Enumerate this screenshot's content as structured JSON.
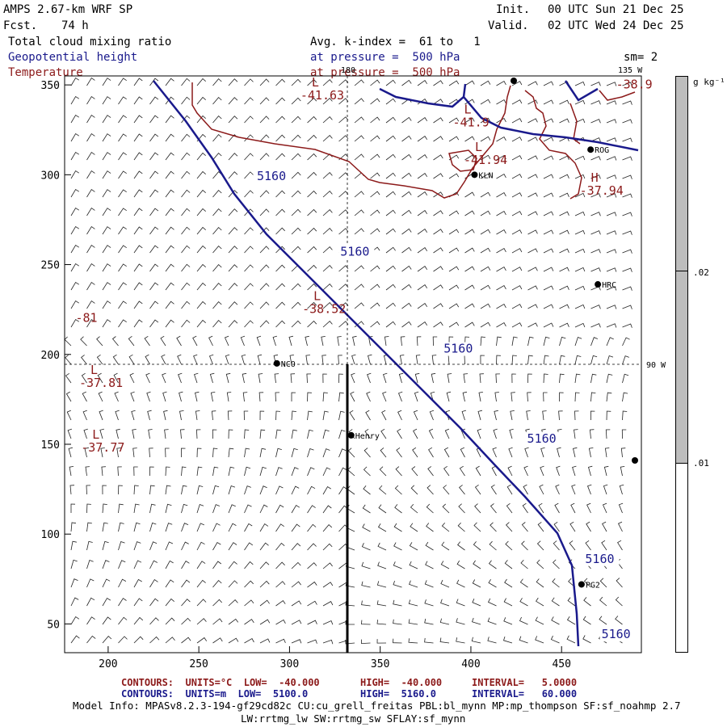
{
  "header": {
    "model_title": "AMPS 2.67-km WRF SP",
    "fcst_label": "Fcst.",
    "fcst_value": "74 h",
    "init_label": "Init.",
    "init_value": "00 UTC Sun 21 Dec 25",
    "valid_label": "Valid.",
    "valid_value": "02 UTC Wed 24 Dec 25",
    "field1": "Total cloud mixing ratio",
    "field2": "Geopotential height",
    "field3": "Temperature",
    "avg_text": "Avg. k-index =  61 to   1",
    "pressure1": "at pressure =  500 hPa",
    "pressure2": "at pressure =  500 hPa",
    "smooth": "sm= 2"
  },
  "colors": {
    "height_contour": "#1a1a8c",
    "temp_contour": "#8c1a1a",
    "coast": "#1a1a8c",
    "colorbar_fill": "#bdbdbd"
  },
  "chart_data": {
    "type": "heatmap",
    "x_ticks": [
      200,
      250,
      300,
      350,
      400,
      450
    ],
    "y_ticks": [
      50,
      100,
      150,
      200,
      250,
      300,
      350
    ],
    "xlim": [
      176,
      494
    ],
    "ylim": [
      34,
      355
    ],
    "grid": false,
    "meridian_labels": [
      "180",
      "135 W",
      "90 W"
    ],
    "stations": [
      {
        "name": "NCO",
        "x": 293,
        "y": 195
      },
      {
        "name": "Henry",
        "x": 334,
        "y": 155
      },
      {
        "name": "KLN",
        "x": 402,
        "y": 300
      },
      {
        "name": "ROG",
        "x": 466,
        "y": 314
      },
      {
        "name": "HRC",
        "x": 470,
        "y": 239
      },
      {
        "name": "PG2",
        "x": 461,
        "y": 72
      }
    ],
    "height_contour_labels": [
      {
        "text": "5160",
        "x": 282,
        "y": 297
      },
      {
        "text": "5160",
        "x": 328,
        "y": 255
      },
      {
        "text": "5160",
        "x": 385,
        "y": 201
      },
      {
        "text": "5160",
        "x": 431,
        "y": 151
      },
      {
        "text": "5160",
        "x": 463,
        "y": 84
      },
      {
        "text": "5160",
        "x": 472,
        "y": 42
      }
    ],
    "temp_extrema": [
      {
        "label": "L",
        "value": "-41.63",
        "x": 306,
        "y": 342
      },
      {
        "label": "L",
        "value": "-41.9",
        "x": 390,
        "y": 327
      },
      {
        "label": "L",
        "value": "-41.94",
        "x": 396,
        "y": 306
      },
      {
        "label": "H",
        "value": "-37.94",
        "x": 460,
        "y": 289
      },
      {
        "label": "",
        "value": "-38.9",
        "x": 480,
        "y": 348
      },
      {
        "label": "L",
        "value": "-38.52",
        "x": 307,
        "y": 223
      },
      {
        "label": "",
        "value": "-81",
        "x": 182,
        "y": 218
      },
      {
        "label": "L",
        "value": "-37.81",
        "x": 184,
        "y": 182
      },
      {
        "label": "L",
        "value": "-37.77",
        "x": 185,
        "y": 146
      }
    ],
    "colorbar": {
      "units": "g kg⁻¹",
      "ticks": [
        ".02",
        ".01"
      ]
    }
  },
  "footer": {
    "contours1_label": "CONTOURS:  UNITS=°C  LOW=  -40.000",
    "contours1_high": "HIGH=  -40.000",
    "contours1_interval": "INTERVAL=   5.0000",
    "contours2_label": "CONTOURS:  UNITS=m  LOW=  5100.0",
    "contours2_high": "HIGH=  5160.0",
    "contours2_interval": "INTERVAL=   60.000",
    "model_info": "Model Info: MPASv8.2.3-194-gf29cd82c CU:cu_grell_freitas PBL:bl_mynn MP:mp_thompson SF:sf_noahmp 2.7",
    "model_info2": "LW:rrtmg_lw SW:rrtmg_sw SFLAY:sf_mynn"
  }
}
